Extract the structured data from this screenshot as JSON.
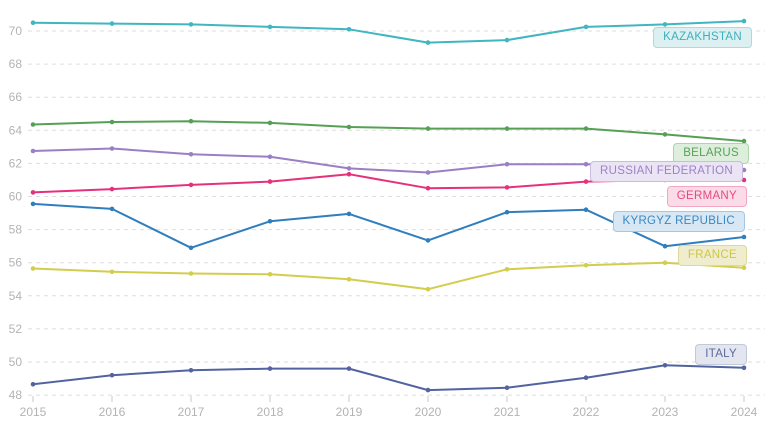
{
  "chart_data": {
    "type": "line",
    "x": [
      2015,
      2016,
      2017,
      2018,
      2019,
      2020,
      2021,
      2022,
      2023,
      2024
    ],
    "x_tick_labels": [
      "2015",
      "2016",
      "2017",
      "2018",
      "2019",
      "2020",
      "2021",
      "2022",
      "2023",
      "2024"
    ],
    "y_ticks": [
      70,
      68,
      66,
      64,
      62,
      60,
      58,
      56,
      54,
      52,
      50,
      48
    ],
    "ylim": [
      47.6,
      71.3
    ],
    "xlabel": "",
    "ylabel": "",
    "grid": "horizontal-dashed",
    "legend_position": "inline-right-badges",
    "series": [
      {
        "name": "KAZAKHSTAN",
        "values": [
          70.5,
          70.45,
          70.4,
          70.25,
          70.1,
          69.3,
          69.45,
          70.25,
          70.4,
          70.6
        ],
        "color": "#3fb6c0",
        "label_bg": "#dcf0f2",
        "label_border": "#a6dbe0",
        "label_text": "#3fafbb"
      },
      {
        "name": "BELARUS",
        "values": [
          64.35,
          64.5,
          64.55,
          64.45,
          64.2,
          64.1,
          64.1,
          64.1,
          63.75,
          63.35
        ],
        "color": "#55a055",
        "label_bg": "#ddeedd",
        "label_border": "#abd6ab",
        "label_text": "#57a257"
      },
      {
        "name": "RUSSIAN FEDERATION",
        "values": [
          62.75,
          62.9,
          62.55,
          62.4,
          61.7,
          61.45,
          61.95,
          61.95,
          61.85,
          61.6
        ],
        "color": "#9b7fc4",
        "label_bg": "#eae4f4",
        "label_border": "#c9bbe1",
        "label_text": "#9c82c6"
      },
      {
        "name": "GERMANY",
        "values": [
          60.25,
          60.45,
          60.7,
          60.9,
          61.35,
          60.5,
          60.55,
          60.9,
          61.0,
          61.0
        ],
        "color": "#e5317b",
        "label_bg": "#fbdbe8",
        "label_border": "#f2a8c5",
        "label_text": "#e64980"
      },
      {
        "name": "KYRGYZ REPUBLIC",
        "values": [
          59.55,
          59.25,
          56.9,
          58.5,
          58.95,
          57.35,
          59.05,
          59.2,
          57.0,
          57.55
        ],
        "color": "#2f7ebe",
        "label_bg": "#d8e7f4",
        "label_border": "#a3c8e6",
        "label_text": "#3a87c2"
      },
      {
        "name": "FRANCE",
        "values": [
          55.65,
          55.45,
          55.35,
          55.3,
          55.0,
          54.4,
          55.6,
          55.85,
          56.0,
          55.7
        ],
        "color": "#d3cd4d",
        "label_bg": "#efedcd",
        "label_border": "#ddd89c",
        "label_text": "#ccc64a"
      },
      {
        "name": "ITALY",
        "values": [
          48.65,
          49.2,
          49.5,
          49.6,
          49.6,
          48.3,
          48.45,
          49.05,
          49.8,
          49.65
        ],
        "color": "#52639f",
        "label_bg": "#e3e6ee",
        "label_border": "#c2c9d9",
        "label_text": "#5b6b9e"
      }
    ],
    "colors": {
      "grid": "#dedede",
      "axis_tick": "#c9c9c9",
      "axis_label": "#b3b3b3",
      "background": "#ffffff"
    }
  }
}
